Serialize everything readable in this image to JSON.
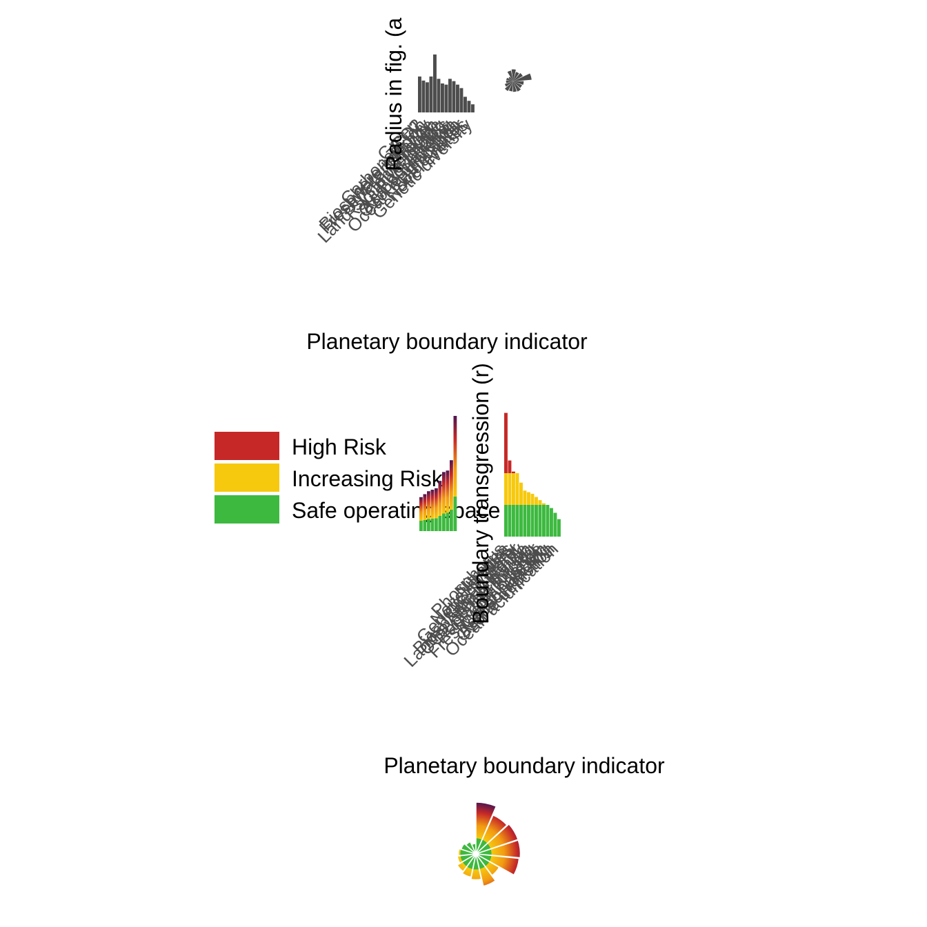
{
  "colors": {
    "high": "#C62828",
    "increasing": "#F6C90E",
    "safe": "#3DB93F",
    "dark": "#4F1550",
    "bar": "#4d4d4d"
  },
  "legend": [
    {
      "label": "High Risk",
      "color": "#C62828"
    },
    {
      "label": "Increasing Risk",
      "color": "#F6C90E"
    },
    {
      "label": "Safe operating space",
      "color": "#3DB93F"
    }
  ],
  "chart_data": [
    {
      "type": "bar",
      "ylabel": "Radius in fig. (a",
      "xlabel": "Planetary boundary indicator",
      "categories": [
        "Green",
        "CO2",
        "Carbonate",
        "Biosphere",
        "Freshwater",
        "Nitrogen",
        "Land-system",
        "Radiative",
        "Phosphorus",
        "Aerosol",
        "Ozone",
        "Ocean",
        "Blue",
        "Novel entities",
        "Genetic"
      ],
      "values": [
        0.62,
        0.55,
        0.52,
        0.62,
        1.0,
        0.58,
        0.5,
        0.48,
        0.58,
        0.54,
        0.48,
        0.42,
        0.27,
        0.2,
        0.14
      ],
      "tick_labels": [
        "Green",
        "CO2",
        "Carbonate ion",
        "Biosphere integrity",
        "Freshwater change",
        "Nitrogen",
        "Land-system change",
        "Radiative forcing",
        "Phosphorus",
        "Aerosol loading",
        "Ozone depletion",
        "Ocean acidification",
        "Blue water",
        "Novel entities",
        "Genetic diversity"
      ]
    },
    {
      "type": "bar",
      "ylabel": "Boundary transgression (r)",
      "xlabel": "Planetary boundary indicator",
      "categories": [
        "Phosphorus",
        "Nitrogen",
        "Novel entities",
        "Genetic",
        "Green",
        "Biosphere",
        "Land-system",
        "CO2",
        "Radiative",
        "Blue",
        "Freshwater",
        "Carbonate",
        "Aerosol",
        "Ozone",
        "Ocean"
      ],
      "values": [
        3.9,
        2.4,
        2.05,
        2.0,
        1.7,
        1.45,
        1.4,
        1.35,
        1.25,
        1.15,
        1.05,
        1.0,
        0.9,
        0.75,
        0.55
      ],
      "tick_labels": [
        "Phosphorus",
        "Nitrogen",
        "Novel entities",
        "Genetic diversity",
        "Green water",
        "Biosphere integrity",
        "Land-system change",
        "CO2 concentration",
        "Radiative forcing",
        "Blue water",
        "Freshwater change",
        "Carbonate ion",
        "Aerosol loading",
        "Ozone depletion",
        "Ocean acidification"
      ]
    },
    {
      "type": "pie",
      "subtype": "polar-bar",
      "categories": [
        "Novel entities",
        "Genetic",
        "Nitrogen",
        "Phosphorus",
        "Green",
        "Biosphere",
        "Land-system",
        "CO2",
        "Radiative",
        "Blue",
        "Freshwater",
        "Carbonate",
        "Aerosol",
        "Ozone",
        "Ocean"
      ],
      "values": [
        1.0,
        0.82,
        0.86,
        0.86,
        0.84,
        0.52,
        0.64,
        0.5,
        0.46,
        0.42,
        0.36,
        0.34,
        0.3,
        0.26,
        0.2
      ]
    }
  ]
}
